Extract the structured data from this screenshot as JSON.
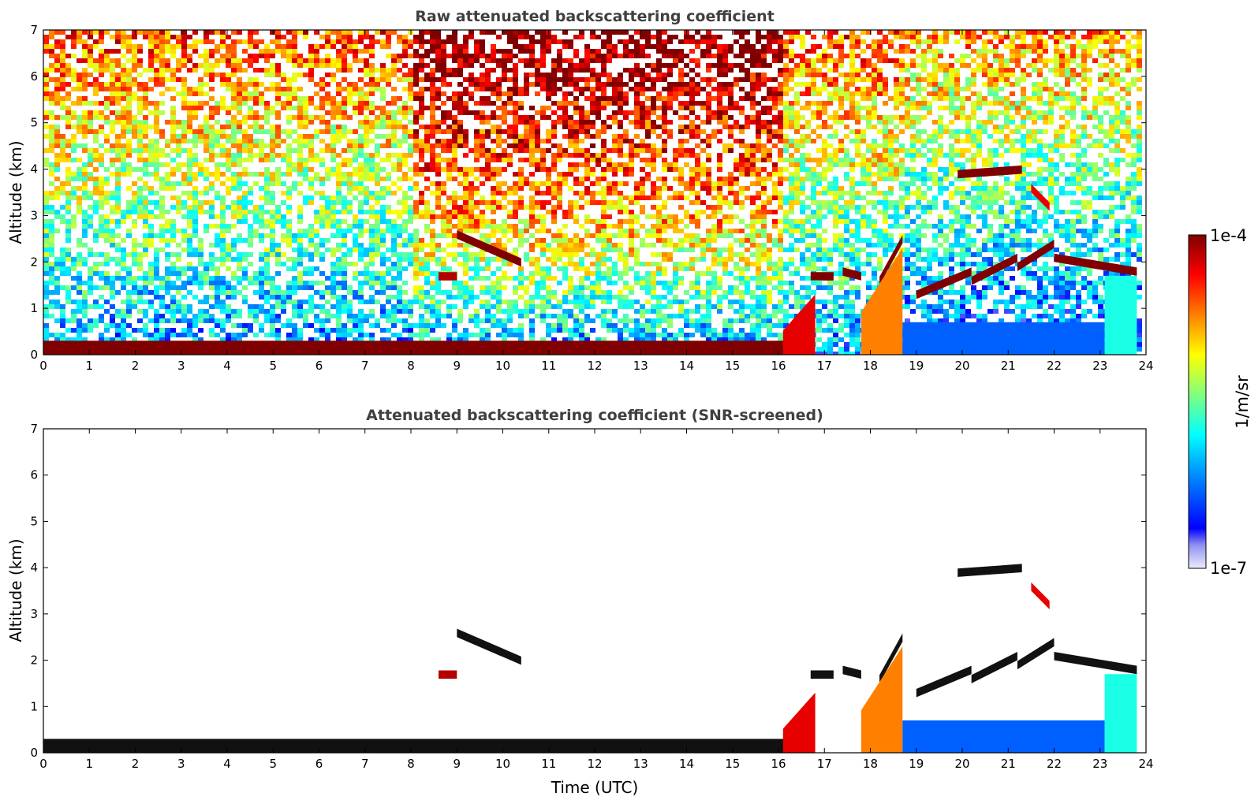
{
  "chart_data": [
    {
      "type": "heatmap",
      "title": "Raw attenuated backscattering coefficient",
      "xlabel": "",
      "ylabel": "Altitude (km)",
      "xlim": [
        0,
        24
      ],
      "ylim": [
        0,
        7
      ],
      "xticks": [
        "0",
        "1",
        "2",
        "3",
        "4",
        "5",
        "6",
        "7",
        "8",
        "9",
        "10",
        "11",
        "12",
        "13",
        "14",
        "15",
        "16",
        "17",
        "18",
        "19",
        "20",
        "21",
        "22",
        "23",
        "24"
      ],
      "yticks": [
        "0",
        "1",
        "2",
        "3",
        "4",
        "5",
        "6",
        "7"
      ],
      "data_end_time": 23.8,
      "screened": false,
      "features": [
        {
          "kind": "boundary_layer",
          "t_start": 0,
          "t_end": 16.6,
          "altitude": 0.15,
          "level": 1.0
        },
        {
          "kind": "cloud",
          "t_start": 9.0,
          "t_end": 10.4,
          "altitude_start": 2.5,
          "altitude_end": 1.9,
          "level": 1.0
        },
        {
          "kind": "cloud",
          "t_start": 8.6,
          "t_end": 9.0,
          "altitude_start": 1.6,
          "altitude_end": 1.6,
          "level": 0.95
        },
        {
          "kind": "cloud",
          "t_start": 16.7,
          "t_end": 17.2,
          "altitude_start": 1.6,
          "altitude_end": 1.6,
          "level": 1.0
        },
        {
          "kind": "cloud",
          "t_start": 17.4,
          "t_end": 17.8,
          "altitude_start": 1.7,
          "altitude_end": 1.6,
          "level": 1.0
        },
        {
          "kind": "cloud",
          "t_start": 18.2,
          "t_end": 18.7,
          "altitude_start": 1.5,
          "altitude_end": 2.4,
          "level": 1.0
        },
        {
          "kind": "cloud",
          "t_start": 19.0,
          "t_end": 20.2,
          "altitude_start": 1.2,
          "altitude_end": 1.7,
          "level": 1.0
        },
        {
          "kind": "cloud",
          "t_start": 20.2,
          "t_end": 21.2,
          "altitude_start": 1.5,
          "altitude_end": 2.0,
          "level": 1.0
        },
        {
          "kind": "cloud",
          "t_start": 21.2,
          "t_end": 22.0,
          "altitude_start": 1.8,
          "altitude_end": 2.3,
          "level": 1.0
        },
        {
          "kind": "cloud",
          "t_start": 22.0,
          "t_end": 23.8,
          "altitude_start": 2.0,
          "altitude_end": 1.7,
          "level": 1.0
        },
        {
          "kind": "cloud",
          "t_start": 19.9,
          "t_end": 21.3,
          "altitude_start": 3.8,
          "altitude_end": 3.9,
          "level": 1.0
        },
        {
          "kind": "cloud",
          "t_start": 21.5,
          "t_end": 21.9,
          "altitude_start": 3.5,
          "altitude_end": 3.1,
          "level": 0.9
        },
        {
          "kind": "convective_plume",
          "t_start": 16.1,
          "t_end": 16.8,
          "altitude_top": 1.3,
          "level": 0.9
        },
        {
          "kind": "convective_plume",
          "t_start": 17.8,
          "t_end": 18.7,
          "altitude_top": 2.3,
          "level": 0.75
        },
        {
          "kind": "aerosol_layer",
          "t_start": 18.7,
          "t_end": 23.1,
          "altitude_top": 0.7,
          "level": 0.2
        },
        {
          "kind": "aerosol_layer",
          "t_start": 23.1,
          "t_end": 23.8,
          "altitude_top": 1.7,
          "level": 0.4
        }
      ]
    },
    {
      "type": "heatmap",
      "title": "Attenuated backscattering coefficient (SNR-screened)",
      "xlabel": "Time (UTC)",
      "ylabel": "Altitude (km)",
      "xlim": [
        0,
        24
      ],
      "ylim": [
        0,
        7
      ],
      "xticks": [
        "0",
        "1",
        "2",
        "3",
        "4",
        "5",
        "6",
        "7",
        "8",
        "9",
        "10",
        "11",
        "12",
        "13",
        "14",
        "15",
        "16",
        "17",
        "18",
        "19",
        "20",
        "21",
        "22",
        "23",
        "24"
      ],
      "yticks": [
        "0",
        "1",
        "2",
        "3",
        "4",
        "5",
        "6",
        "7"
      ],
      "data_end_time": 23.8,
      "screened": true
    }
  ],
  "colorbar": {
    "label": "1/m/sr",
    "max_label": "1e-4",
    "min_label": "1e-7",
    "colormap": [
      "#e8e8f8",
      "#0000ff",
      "#00a0ff",
      "#00ffff",
      "#80ff80",
      "#ffff00",
      "#ff8000",
      "#ff0000",
      "#800000"
    ]
  }
}
